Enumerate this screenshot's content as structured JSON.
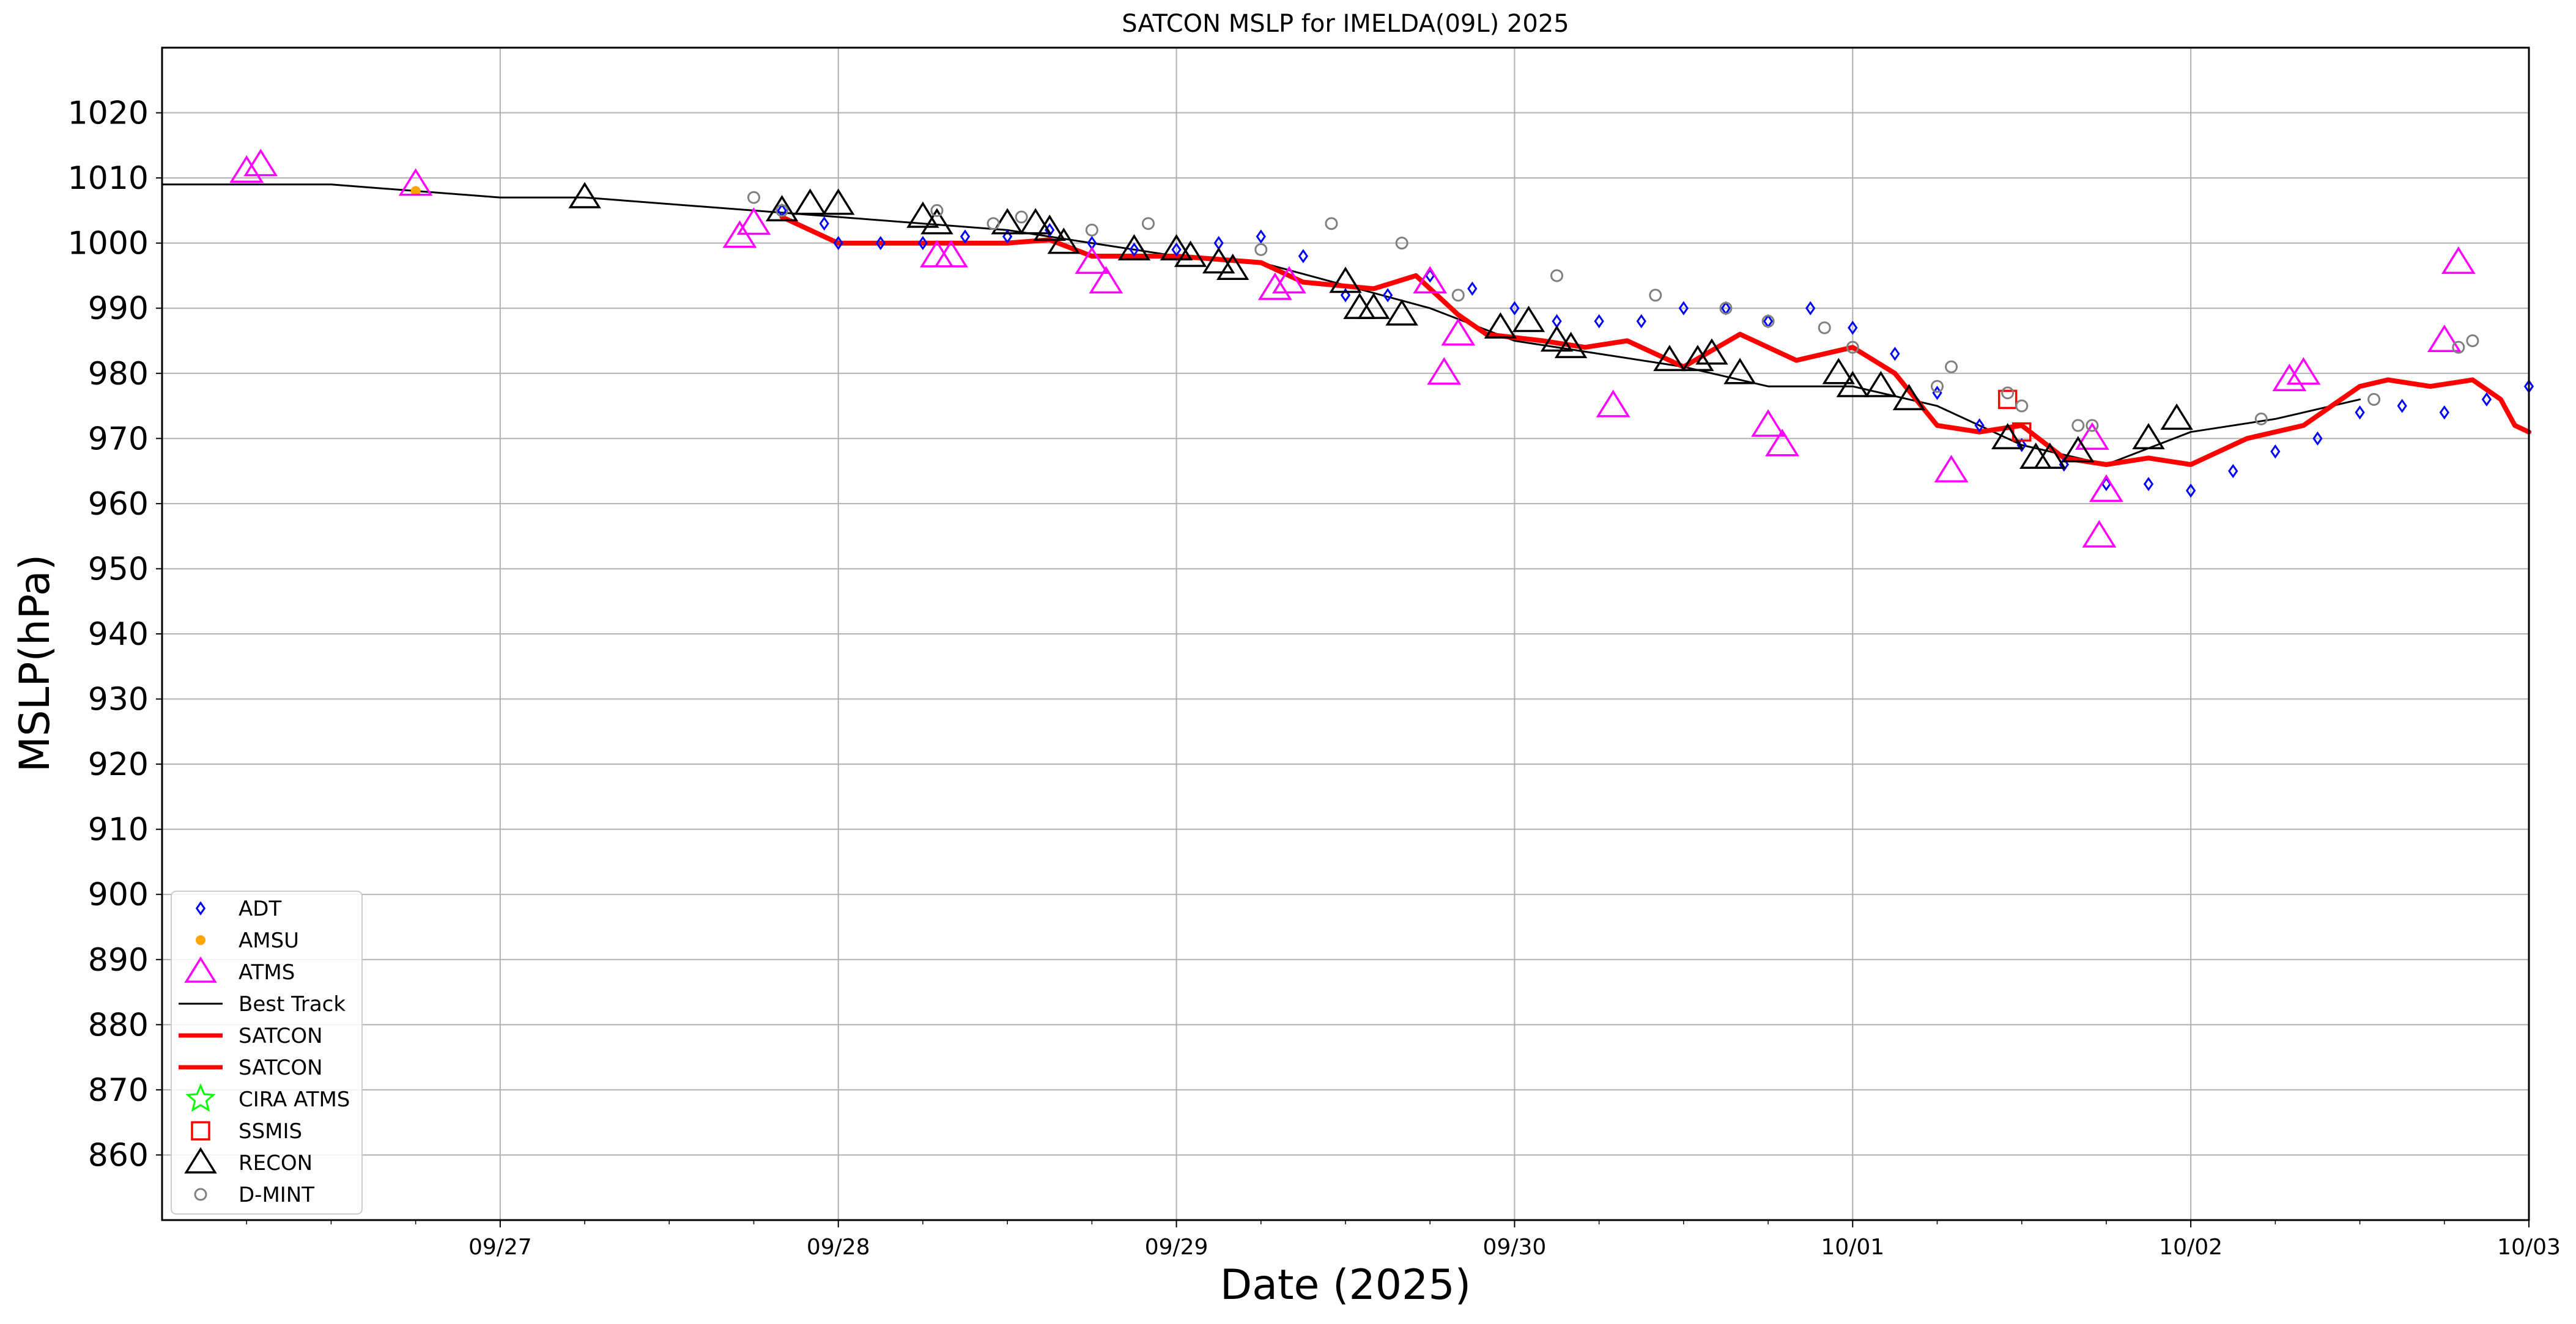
{
  "chart_data": {
    "type": "scatter",
    "title": "SATCON MSLP for IMELDA(09L) 2025",
    "xlabel": "Date (2025)",
    "ylabel": "MSLP(hPa)",
    "xlim": [
      "2025-09-26 00:00",
      "2025-10-03 00:00"
    ],
    "ylim": [
      850,
      1030
    ],
    "xticks": [
      "09/27",
      "09/28",
      "09/29",
      "09/30",
      "10/01",
      "10/02",
      "10/03"
    ],
    "yticks": [
      860,
      870,
      880,
      890,
      900,
      910,
      920,
      930,
      940,
      950,
      960,
      970,
      980,
      990,
      1000,
      1010,
      1020
    ],
    "grid": true,
    "legend_position": "lower-left",
    "legend": [
      {
        "label": "ADT",
        "marker": "diamond",
        "color": "#0000ff"
      },
      {
        "label": "AMSU",
        "marker": "dot",
        "color": "#ffa500"
      },
      {
        "label": "ATMS",
        "marker": "triangle",
        "color": "#ff00ff"
      },
      {
        "label": "Best Track",
        "marker": "line",
        "color": "#000000"
      },
      {
        "label": "SATCON",
        "marker": "thick-line",
        "color": "#ff0000"
      },
      {
        "label": "SATCON",
        "marker": "thick-line",
        "color": "#ff0000"
      },
      {
        "label": "CIRA ATMS",
        "marker": "star",
        "color": "#00ff00"
      },
      {
        "label": "SSMIS",
        "marker": "square",
        "color": "#ff0000"
      },
      {
        "label": "RECON",
        "marker": "triangle",
        "color": "#000000"
      },
      {
        "label": "D-MINT",
        "marker": "circle",
        "color": "#808080"
      }
    ],
    "series": [
      {
        "name": "Best Track",
        "kind": "line",
        "color": "#000000",
        "points": [
          [
            "2025-09-26 00:00",
            1009
          ],
          [
            "2025-09-26 12:00",
            1009
          ],
          [
            "2025-09-27 00:00",
            1007
          ],
          [
            "2025-09-27 06:00",
            1007
          ],
          [
            "2025-09-27 18:00",
            1005
          ],
          [
            "2025-09-28 00:00",
            1004
          ],
          [
            "2025-09-28 12:00",
            1002
          ],
          [
            "2025-09-29 00:00",
            998
          ],
          [
            "2025-09-29 06:00",
            997
          ],
          [
            "2025-09-29 18:00",
            990
          ],
          [
            "2025-09-30 00:00",
            985
          ],
          [
            "2025-09-30 12:00",
            981
          ],
          [
            "2025-09-30 18:00",
            978
          ],
          [
            "2025-10-01 00:00",
            978
          ],
          [
            "2025-10-01 06:00",
            975
          ],
          [
            "2025-10-01 12:00",
            969
          ],
          [
            "2025-10-01 18:00",
            966
          ],
          [
            "2025-10-02 00:00",
            971
          ],
          [
            "2025-10-02 06:00",
            973
          ],
          [
            "2025-10-02 12:00",
            976
          ]
        ]
      },
      {
        "name": "SATCON",
        "kind": "thick-line",
        "color": "#ff0000",
        "points": [
          [
            "2025-09-27 20:00",
            1004
          ],
          [
            "2025-09-28 00:00",
            1000
          ],
          [
            "2025-09-28 06:00",
            1000
          ],
          [
            "2025-09-28 12:00",
            1000
          ],
          [
            "2025-09-28 15:00",
            1000.5
          ],
          [
            "2025-09-28 18:00",
            998
          ],
          [
            "2025-09-29 00:00",
            998
          ],
          [
            "2025-09-29 06:00",
            997
          ],
          [
            "2025-09-29 09:00",
            994
          ],
          [
            "2025-09-29 14:00",
            993
          ],
          [
            "2025-09-29 17:00",
            995
          ],
          [
            "2025-09-29 20:00",
            989
          ],
          [
            "2025-09-29 22:00",
            986
          ],
          [
            "2025-09-30 02:00",
            985
          ],
          [
            "2025-09-30 05:00",
            984
          ],
          [
            "2025-09-30 08:00",
            985
          ],
          [
            "2025-09-30 12:00",
            981
          ],
          [
            "2025-09-30 16:00",
            986
          ],
          [
            "2025-09-30 20:00",
            982
          ],
          [
            "2025-10-01 00:00",
            984
          ],
          [
            "2025-10-01 03:00",
            980
          ],
          [
            "2025-10-01 06:00",
            972
          ],
          [
            "2025-10-01 09:00",
            971
          ],
          [
            "2025-10-01 12:00",
            972
          ],
          [
            "2025-10-01 15:00",
            967
          ],
          [
            "2025-10-01 18:00",
            966
          ],
          [
            "2025-10-01 21:00",
            967
          ],
          [
            "2025-10-02 00:00",
            966
          ],
          [
            "2025-10-02 04:00",
            970
          ],
          [
            "2025-10-02 08:00",
            972
          ],
          [
            "2025-10-02 12:00",
            978
          ],
          [
            "2025-10-02 14:00",
            979
          ],
          [
            "2025-10-02 17:00",
            978
          ],
          [
            "2025-10-02 20:00",
            979
          ],
          [
            "2025-10-02 22:00",
            976
          ],
          [
            "2025-10-02 23:00",
            972
          ],
          [
            "2025-10-02 24:00",
            971
          ]
        ]
      },
      {
        "name": "ADT",
        "kind": "diamond",
        "color": "#0000ff",
        "points": [
          [
            "2025-09-27 20:00",
            1005
          ],
          [
            "2025-09-27 23:00",
            1003
          ],
          [
            "2025-09-28 00:00",
            1000
          ],
          [
            "2025-09-28 03:00",
            1000
          ],
          [
            "2025-09-28 06:00",
            1000
          ],
          [
            "2025-09-28 09:00",
            1001
          ],
          [
            "2025-09-28 12:00",
            1001
          ],
          [
            "2025-09-28 15:00",
            1002
          ],
          [
            "2025-09-28 18:00",
            1000
          ],
          [
            "2025-09-28 21:00",
            999
          ],
          [
            "2025-09-29 00:00",
            999
          ],
          [
            "2025-09-29 03:00",
            1000
          ],
          [
            "2025-09-29 06:00",
            1001
          ],
          [
            "2025-09-29 09:00",
            998
          ],
          [
            "2025-09-29 12:00",
            992
          ],
          [
            "2025-09-29 15:00",
            992
          ],
          [
            "2025-09-29 18:00",
            995
          ],
          [
            "2025-09-29 21:00",
            993
          ],
          [
            "2025-09-30 00:00",
            990
          ],
          [
            "2025-09-30 03:00",
            988
          ],
          [
            "2025-09-30 06:00",
            988
          ],
          [
            "2025-09-30 09:00",
            988
          ],
          [
            "2025-09-30 12:00",
            990
          ],
          [
            "2025-09-30 15:00",
            990
          ],
          [
            "2025-09-30 18:00",
            988
          ],
          [
            "2025-09-30 21:00",
            990
          ],
          [
            "2025-10-01 00:00",
            987
          ],
          [
            "2025-10-01 03:00",
            983
          ],
          [
            "2025-10-01 06:00",
            977
          ],
          [
            "2025-10-01 09:00",
            972
          ],
          [
            "2025-10-01 12:00",
            969
          ],
          [
            "2025-10-01 15:00",
            966
          ],
          [
            "2025-10-01 18:00",
            963
          ],
          [
            "2025-10-01 21:00",
            963
          ],
          [
            "2025-10-02 00:00",
            962
          ],
          [
            "2025-10-02 03:00",
            965
          ],
          [
            "2025-10-02 06:00",
            968
          ],
          [
            "2025-10-02 09:00",
            970
          ],
          [
            "2025-10-02 12:00",
            974
          ],
          [
            "2025-10-02 15:00",
            975
          ],
          [
            "2025-10-02 18:00",
            974
          ],
          [
            "2025-10-02 21:00",
            976
          ],
          [
            "2025-10-03 00:00",
            978
          ]
        ]
      },
      {
        "name": "AMSU",
        "kind": "dot",
        "color": "#ffa500",
        "points": [
          [
            "2025-09-26 18:00",
            1008
          ]
        ]
      },
      {
        "name": "ATMS",
        "kind": "triangle",
        "color": "#ff00ff",
        "points": [
          [
            "2025-09-26 06:00",
            1011
          ],
          [
            "2025-09-26 07:00",
            1012
          ],
          [
            "2025-09-26 18:00",
            1009
          ],
          [
            "2025-09-27 17:00",
            1001
          ],
          [
            "2025-09-27 18:00",
            1003
          ],
          [
            "2025-09-28 07:00",
            998
          ],
          [
            "2025-09-28 08:00",
            998
          ],
          [
            "2025-09-28 18:00",
            997
          ],
          [
            "2025-09-28 19:00",
            994
          ],
          [
            "2025-09-29 07:00",
            993
          ],
          [
            "2025-09-29 08:00",
            994
          ],
          [
            "2025-09-29 18:00",
            994
          ],
          [
            "2025-09-29 19:00",
            980
          ],
          [
            "2025-09-29 20:00",
            986
          ],
          [
            "2025-09-30 07:00",
            975
          ],
          [
            "2025-09-30 18:00",
            972
          ],
          [
            "2025-09-30 19:00",
            969
          ],
          [
            "2025-10-01 07:00",
            965
          ],
          [
            "2025-10-01 17:00",
            970
          ],
          [
            "2025-10-01 18:00",
            962
          ],
          [
            "2025-10-01 17:30",
            955
          ],
          [
            "2025-10-02 07:00",
            979
          ],
          [
            "2025-10-02 08:00",
            980
          ],
          [
            "2025-10-02 18:00",
            985
          ],
          [
            "2025-10-02 19:00",
            997
          ]
        ]
      },
      {
        "name": "SSMIS",
        "kind": "square",
        "color": "#ff0000",
        "points": [
          [
            "2025-10-01 11:00",
            976
          ],
          [
            "2025-10-01 12:00",
            971
          ]
        ]
      },
      {
        "name": "RECON",
        "kind": "open-triangle",
        "color": "#000000",
        "points": [
          [
            "2025-09-27 06:00",
            1007
          ],
          [
            "2025-09-27 20:00",
            1005
          ],
          [
            "2025-09-27 22:00",
            1006
          ],
          [
            "2025-09-28 00:00",
            1006
          ],
          [
            "2025-09-28 06:00",
            1004
          ],
          [
            "2025-09-28 07:00",
            1003
          ],
          [
            "2025-09-28 12:00",
            1003
          ],
          [
            "2025-09-28 14:00",
            1003
          ],
          [
            "2025-09-28 15:00",
            1002
          ],
          [
            "2025-09-28 16:00",
            1000
          ],
          [
            "2025-09-28 21:00",
            999
          ],
          [
            "2025-09-29 00:00",
            999
          ],
          [
            "2025-09-29 01:00",
            998
          ],
          [
            "2025-09-29 03:00",
            997
          ],
          [
            "2025-09-29 04:00",
            996
          ],
          [
            "2025-09-29 12:00",
            994
          ],
          [
            "2025-09-29 13:00",
            990
          ],
          [
            "2025-09-29 14:00",
            990
          ],
          [
            "2025-09-29 16:00",
            989
          ],
          [
            "2025-09-29 23:00",
            987
          ],
          [
            "2025-09-30 01:00",
            988
          ],
          [
            "2025-09-30 03:00",
            985
          ],
          [
            "2025-09-30 04:00",
            984
          ],
          [
            "2025-09-30 11:00",
            982
          ],
          [
            "2025-09-30 13:00",
            982
          ],
          [
            "2025-09-30 14:00",
            983
          ],
          [
            "2025-09-30 16:00",
            980
          ],
          [
            "2025-09-30 23:00",
            980
          ],
          [
            "2025-10-01 00:00",
            978
          ],
          [
            "2025-10-01 02:00",
            978
          ],
          [
            "2025-10-01 04:00",
            976
          ],
          [
            "2025-10-01 11:00",
            970
          ],
          [
            "2025-10-01 13:00",
            967
          ],
          [
            "2025-10-01 14:00",
            967
          ],
          [
            "2025-10-01 16:00",
            968
          ],
          [
            "2025-10-01 21:00",
            970
          ],
          [
            "2025-10-01 23:00",
            973
          ]
        ]
      },
      {
        "name": "D-MINT",
        "kind": "circle",
        "color": "#808080",
        "points": [
          [
            "2025-09-27 18:00",
            1007
          ],
          [
            "2025-09-27 20:00",
            1005
          ],
          [
            "2025-09-28 07:00",
            1005
          ],
          [
            "2025-09-28 11:00",
            1003
          ],
          [
            "2025-09-28 13:00",
            1004
          ],
          [
            "2025-09-28 18:00",
            1002
          ],
          [
            "2025-09-28 22:00",
            1003
          ],
          [
            "2025-09-29 06:00",
            999
          ],
          [
            "2025-09-29 11:00",
            1003
          ],
          [
            "2025-09-29 16:00",
            1000
          ],
          [
            "2025-09-29 20:00",
            992
          ],
          [
            "2025-09-30 03:00",
            995
          ],
          [
            "2025-09-30 10:00",
            992
          ],
          [
            "2025-09-30 15:00",
            990
          ],
          [
            "2025-09-30 18:00",
            988
          ],
          [
            "2025-09-30 22:00",
            987
          ],
          [
            "2025-10-01 00:00",
            984
          ],
          [
            "2025-10-01 06:00",
            978
          ],
          [
            "2025-10-01 07:00",
            981
          ],
          [
            "2025-10-01 11:00",
            977
          ],
          [
            "2025-10-01 12:00",
            975
          ],
          [
            "2025-10-01 16:00",
            972
          ],
          [
            "2025-10-01 17:00",
            972
          ],
          [
            "2025-10-02 05:00",
            973
          ],
          [
            "2025-10-02 13:00",
            976
          ],
          [
            "2025-10-02 19:00",
            984
          ],
          [
            "2025-10-02 20:00",
            985
          ]
        ]
      }
    ]
  }
}
